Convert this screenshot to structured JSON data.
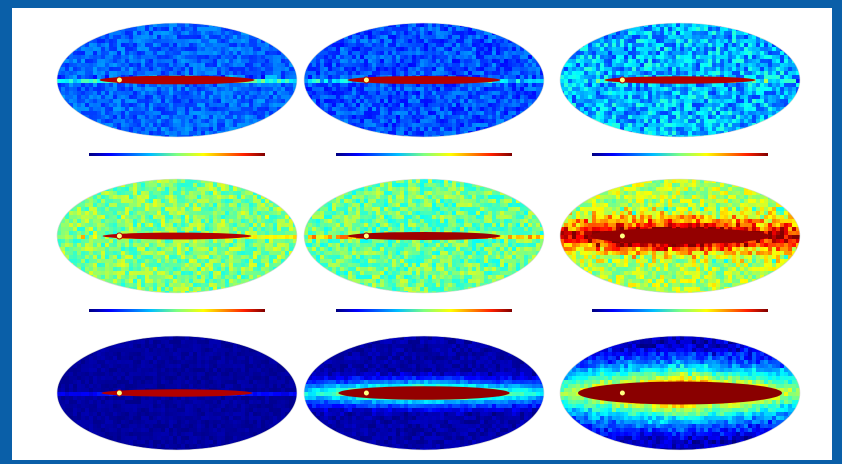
{
  "figure": {
    "background_color": "#0a5fa8",
    "frame_color": "#ffffff",
    "projection": "mollweide-ellipse",
    "colormap": "jet",
    "rows": 3,
    "columns": 3,
    "panels": [
      {
        "row": 1,
        "col": 1,
        "title": "",
        "scale_min": "",
        "scale_max": "",
        "galactic_plane_level": 0.95,
        "background_level": 0.22,
        "band_intensity": 0.55,
        "band_half_width": 0.06,
        "noise": 0.06,
        "halo_extent": 0.0
      },
      {
        "row": 1,
        "col": 2,
        "title": "",
        "scale_min": "",
        "scale_max": "",
        "galactic_plane_level": 0.95,
        "background_level": 0.2,
        "band_intensity": 0.45,
        "band_half_width": 0.05,
        "noise": 0.07,
        "halo_extent": 0.0
      },
      {
        "row": 1,
        "col": 3,
        "title": "",
        "scale_min": "",
        "scale_max": "",
        "galactic_plane_level": 0.95,
        "background_level": 0.3,
        "band_intensity": 0.3,
        "band_half_width": 0.04,
        "noise": 0.12,
        "halo_extent": 0.0
      },
      {
        "row": 2,
        "col": 1,
        "title": "",
        "scale_min": "",
        "scale_max": "",
        "galactic_plane_level": 0.95,
        "background_level": 0.5,
        "band_intensity": 0.45,
        "band_half_width": 0.03,
        "noise": 0.1,
        "halo_extent": 0.0
      },
      {
        "row": 2,
        "col": 2,
        "title": "",
        "scale_min": "",
        "scale_max": "",
        "galactic_plane_level": 0.97,
        "background_level": 0.48,
        "band_intensity": 0.55,
        "band_half_width": 0.05,
        "noise": 0.1,
        "halo_extent": 0.0
      },
      {
        "row": 2,
        "col": 3,
        "title": "",
        "scale_min": "",
        "scale_max": "",
        "galactic_plane_level": 0.98,
        "background_level": 0.55,
        "band_intensity": 0.75,
        "band_half_width": 0.18,
        "noise": 0.1,
        "halo_extent": 0.3
      },
      {
        "row": 3,
        "col": 1,
        "title": "",
        "scale_min": "",
        "scale_max": "",
        "galactic_plane_level": 0.95,
        "background_level": 0.03,
        "band_intensity": 0.4,
        "band_half_width": 0.04,
        "noise": 0.02,
        "halo_extent": 0.0
      },
      {
        "row": 3,
        "col": 2,
        "title": "",
        "scale_min": "",
        "scale_max": "",
        "galactic_plane_level": 0.98,
        "background_level": 0.04,
        "band_intensity": 0.7,
        "band_half_width": 0.14,
        "noise": 0.03,
        "halo_extent": 0.25
      },
      {
        "row": 3,
        "col": 3,
        "title": "",
        "scale_min": "",
        "scale_max": "",
        "galactic_plane_level": 0.99,
        "background_level": 0.06,
        "band_intensity": 0.95,
        "band_half_width": 0.3,
        "noise": 0.05,
        "halo_extent": 0.6
      }
    ]
  }
}
